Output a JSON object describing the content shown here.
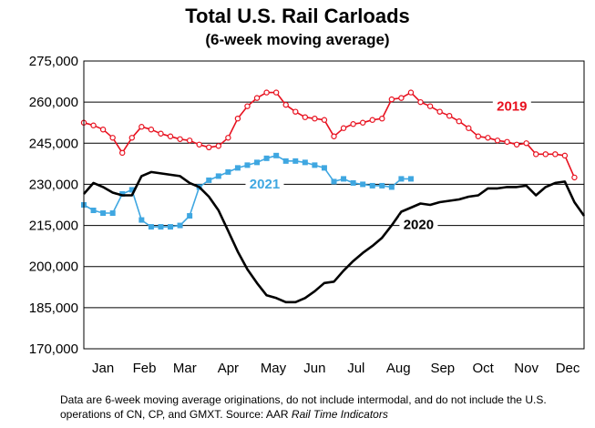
{
  "title": "Total U.S. Rail Carloads",
  "subtitle": "(6-week moving average)",
  "footnote": {
    "main": "Data are 6-week moving average originations, do not include intermodal, and do not include the U.S. operations of CN, CP, and GMXT.  Source: AAR ",
    "source_italic": "Rail Time Indicators"
  },
  "chart_data": {
    "type": "line",
    "title": "Total U.S. Rail Carloads",
    "subtitle": "(6-week moving average)",
    "xlabel": "",
    "ylabel": "",
    "ylim": [
      170000,
      275000
    ],
    "yticks": [
      170000,
      185000,
      200000,
      215000,
      230000,
      245000,
      260000,
      275000
    ],
    "ytick_labels": [
      "170,000",
      "185,000",
      "200,000",
      "215,000",
      "230,000",
      "245,000",
      "260,000",
      "275,000"
    ],
    "xlim": [
      0,
      52
    ],
    "xticks": [
      {
        "label": "Jan",
        "week": 2
      },
      {
        "label": "Feb",
        "week": 6.3
      },
      {
        "label": "Mar",
        "week": 10.5
      },
      {
        "label": "Apr",
        "week": 15
      },
      {
        "label": "May",
        "week": 19.7
      },
      {
        "label": "Jun",
        "week": 24
      },
      {
        "label": "Jul",
        "week": 28.3
      },
      {
        "label": "Aug",
        "week": 32.7
      },
      {
        "label": "Sep",
        "week": 37.3
      },
      {
        "label": "Oct",
        "week": 41.5
      },
      {
        "label": "Nov",
        "week": 46
      },
      {
        "label": "Dec",
        "week": 50.3
      }
    ],
    "grid": true,
    "series": [
      {
        "name": "2019",
        "color": "#e8111f",
        "marker": "circle",
        "label_week": 44.5,
        "label_value": 257500,
        "weeks": [
          0,
          1,
          2,
          3,
          4,
          5,
          6,
          7,
          8,
          9,
          10,
          11,
          12,
          13,
          14,
          15,
          16,
          17,
          18,
          19,
          20,
          21,
          22,
          23,
          24,
          25,
          26,
          27,
          28,
          29,
          30,
          31,
          32,
          33,
          34,
          35,
          36,
          37,
          38,
          39,
          40,
          41,
          42,
          43,
          44,
          45,
          46,
          47,
          48,
          49,
          50,
          51
        ],
        "values": [
          252500,
          251500,
          250000,
          247000,
          241500,
          247000,
          251000,
          250000,
          248500,
          247500,
          246500,
          246000,
          244500,
          243500,
          244000,
          247000,
          254000,
          258500,
          261500,
          263500,
          263500,
          259000,
          256500,
          254500,
          254000,
          253500,
          247500,
          250500,
          252000,
          252500,
          253500,
          254000,
          261000,
          261500,
          263500,
          260000,
          258500,
          256500,
          255000,
          253000,
          250500,
          247500,
          247000,
          246000,
          245500,
          244500,
          245000,
          241000,
          241000,
          241000,
          240500,
          232500
        ]
      },
      {
        "name": "2021",
        "color": "#3fa7e1",
        "marker": "square",
        "label_week": 18.8,
        "label_value": 229200,
        "weeks": [
          0,
          1,
          2,
          3,
          4,
          5,
          6,
          7,
          8,
          9,
          10,
          11,
          12,
          13,
          14,
          15,
          16,
          17,
          18,
          19,
          20,
          21,
          22,
          23,
          24,
          25,
          26,
          27,
          28,
          29,
          30,
          31,
          32,
          33,
          34
        ],
        "values": [
          222500,
          220500,
          219500,
          219500,
          226500,
          228000,
          217000,
          214500,
          214500,
          214500,
          215000,
          218500,
          229000,
          231500,
          233000,
          234500,
          236000,
          237000,
          238000,
          239500,
          240500,
          238500,
          238500,
          238000,
          237000,
          236000,
          231000,
          232000,
          230500,
          230000,
          229500,
          229500,
          229000,
          232000,
          232000
        ]
      },
      {
        "name": "2020",
        "color": "#000000",
        "marker": "none",
        "label_week": 34.8,
        "label_value": 214300,
        "weeks": [
          0,
          1,
          2,
          3,
          4,
          5,
          6,
          7,
          8,
          9,
          10,
          11,
          12,
          13,
          14,
          15,
          16,
          17,
          18,
          19,
          20,
          21,
          22,
          23,
          24,
          25,
          26,
          27,
          28,
          29,
          30,
          31,
          32,
          33,
          34,
          35,
          36,
          37,
          38,
          39,
          40,
          41,
          42,
          43,
          44,
          45,
          46,
          47,
          48,
          49,
          50,
          51,
          52
        ],
        "values": [
          226500,
          230500,
          229000,
          227000,
          226000,
          226000,
          233000,
          234500,
          234000,
          233500,
          233000,
          230500,
          229000,
          225500,
          220500,
          213000,
          205500,
          199000,
          194000,
          189500,
          188500,
          187000,
          187000,
          188500,
          191000,
          194000,
          194500,
          198500,
          202000,
          205000,
          207500,
          210500,
          215000,
          220000,
          221500,
          223000,
          222500,
          223500,
          224000,
          224500,
          225500,
          226000,
          228500,
          228500,
          229000,
          229000,
          229500,
          226000,
          229000,
          230500,
          231000,
          223500,
          218500
        ]
      }
    ]
  }
}
